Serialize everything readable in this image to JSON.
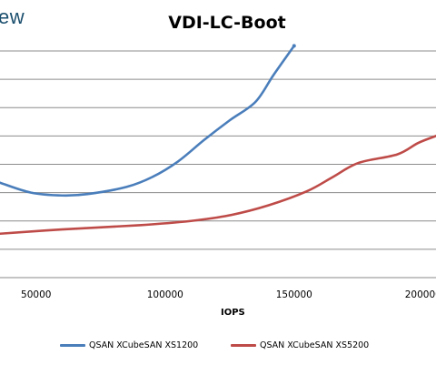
{
  "brand_text": "ew",
  "chart_data": {
    "type": "line",
    "title": "VDI-LC-Boot",
    "xlabel": "IOPS",
    "ylabel": "",
    "x_ticks": [
      50000,
      100000,
      150000,
      200000
    ],
    "x_tick_labels": [
      "50000",
      "100000",
      "150000",
      "200000"
    ],
    "xlim": [
      36000,
      205000
    ],
    "y_gridlines": 8,
    "grid": true,
    "legend": "bottom",
    "series": [
      {
        "name": "QSAN XCubeSAN XS1200",
        "color": "#4a7ebb",
        "points": [
          [
            36000,
            3.35
          ],
          [
            48000,
            3.0
          ],
          [
            60000,
            2.9
          ],
          [
            70000,
            2.95
          ],
          [
            85000,
            3.2
          ],
          [
            95000,
            3.55
          ],
          [
            105000,
            4.1
          ],
          [
            115000,
            4.85
          ],
          [
            125000,
            5.55
          ],
          [
            135000,
            6.2
          ],
          [
            142000,
            7.15
          ],
          [
            150000,
            8.18
          ]
        ]
      },
      {
        "name": "QSAN XCubeSAN XS5200",
        "color": "#be4b48",
        "points": [
          [
            36000,
            1.55
          ],
          [
            60000,
            1.7
          ],
          [
            90000,
            1.85
          ],
          [
            110000,
            2.0
          ],
          [
            125000,
            2.2
          ],
          [
            140000,
            2.55
          ],
          [
            155000,
            3.05
          ],
          [
            165000,
            3.55
          ],
          [
            175000,
            4.05
          ],
          [
            190000,
            4.35
          ],
          [
            198000,
            4.75
          ],
          [
            205000,
            5.0
          ]
        ]
      }
    ]
  }
}
